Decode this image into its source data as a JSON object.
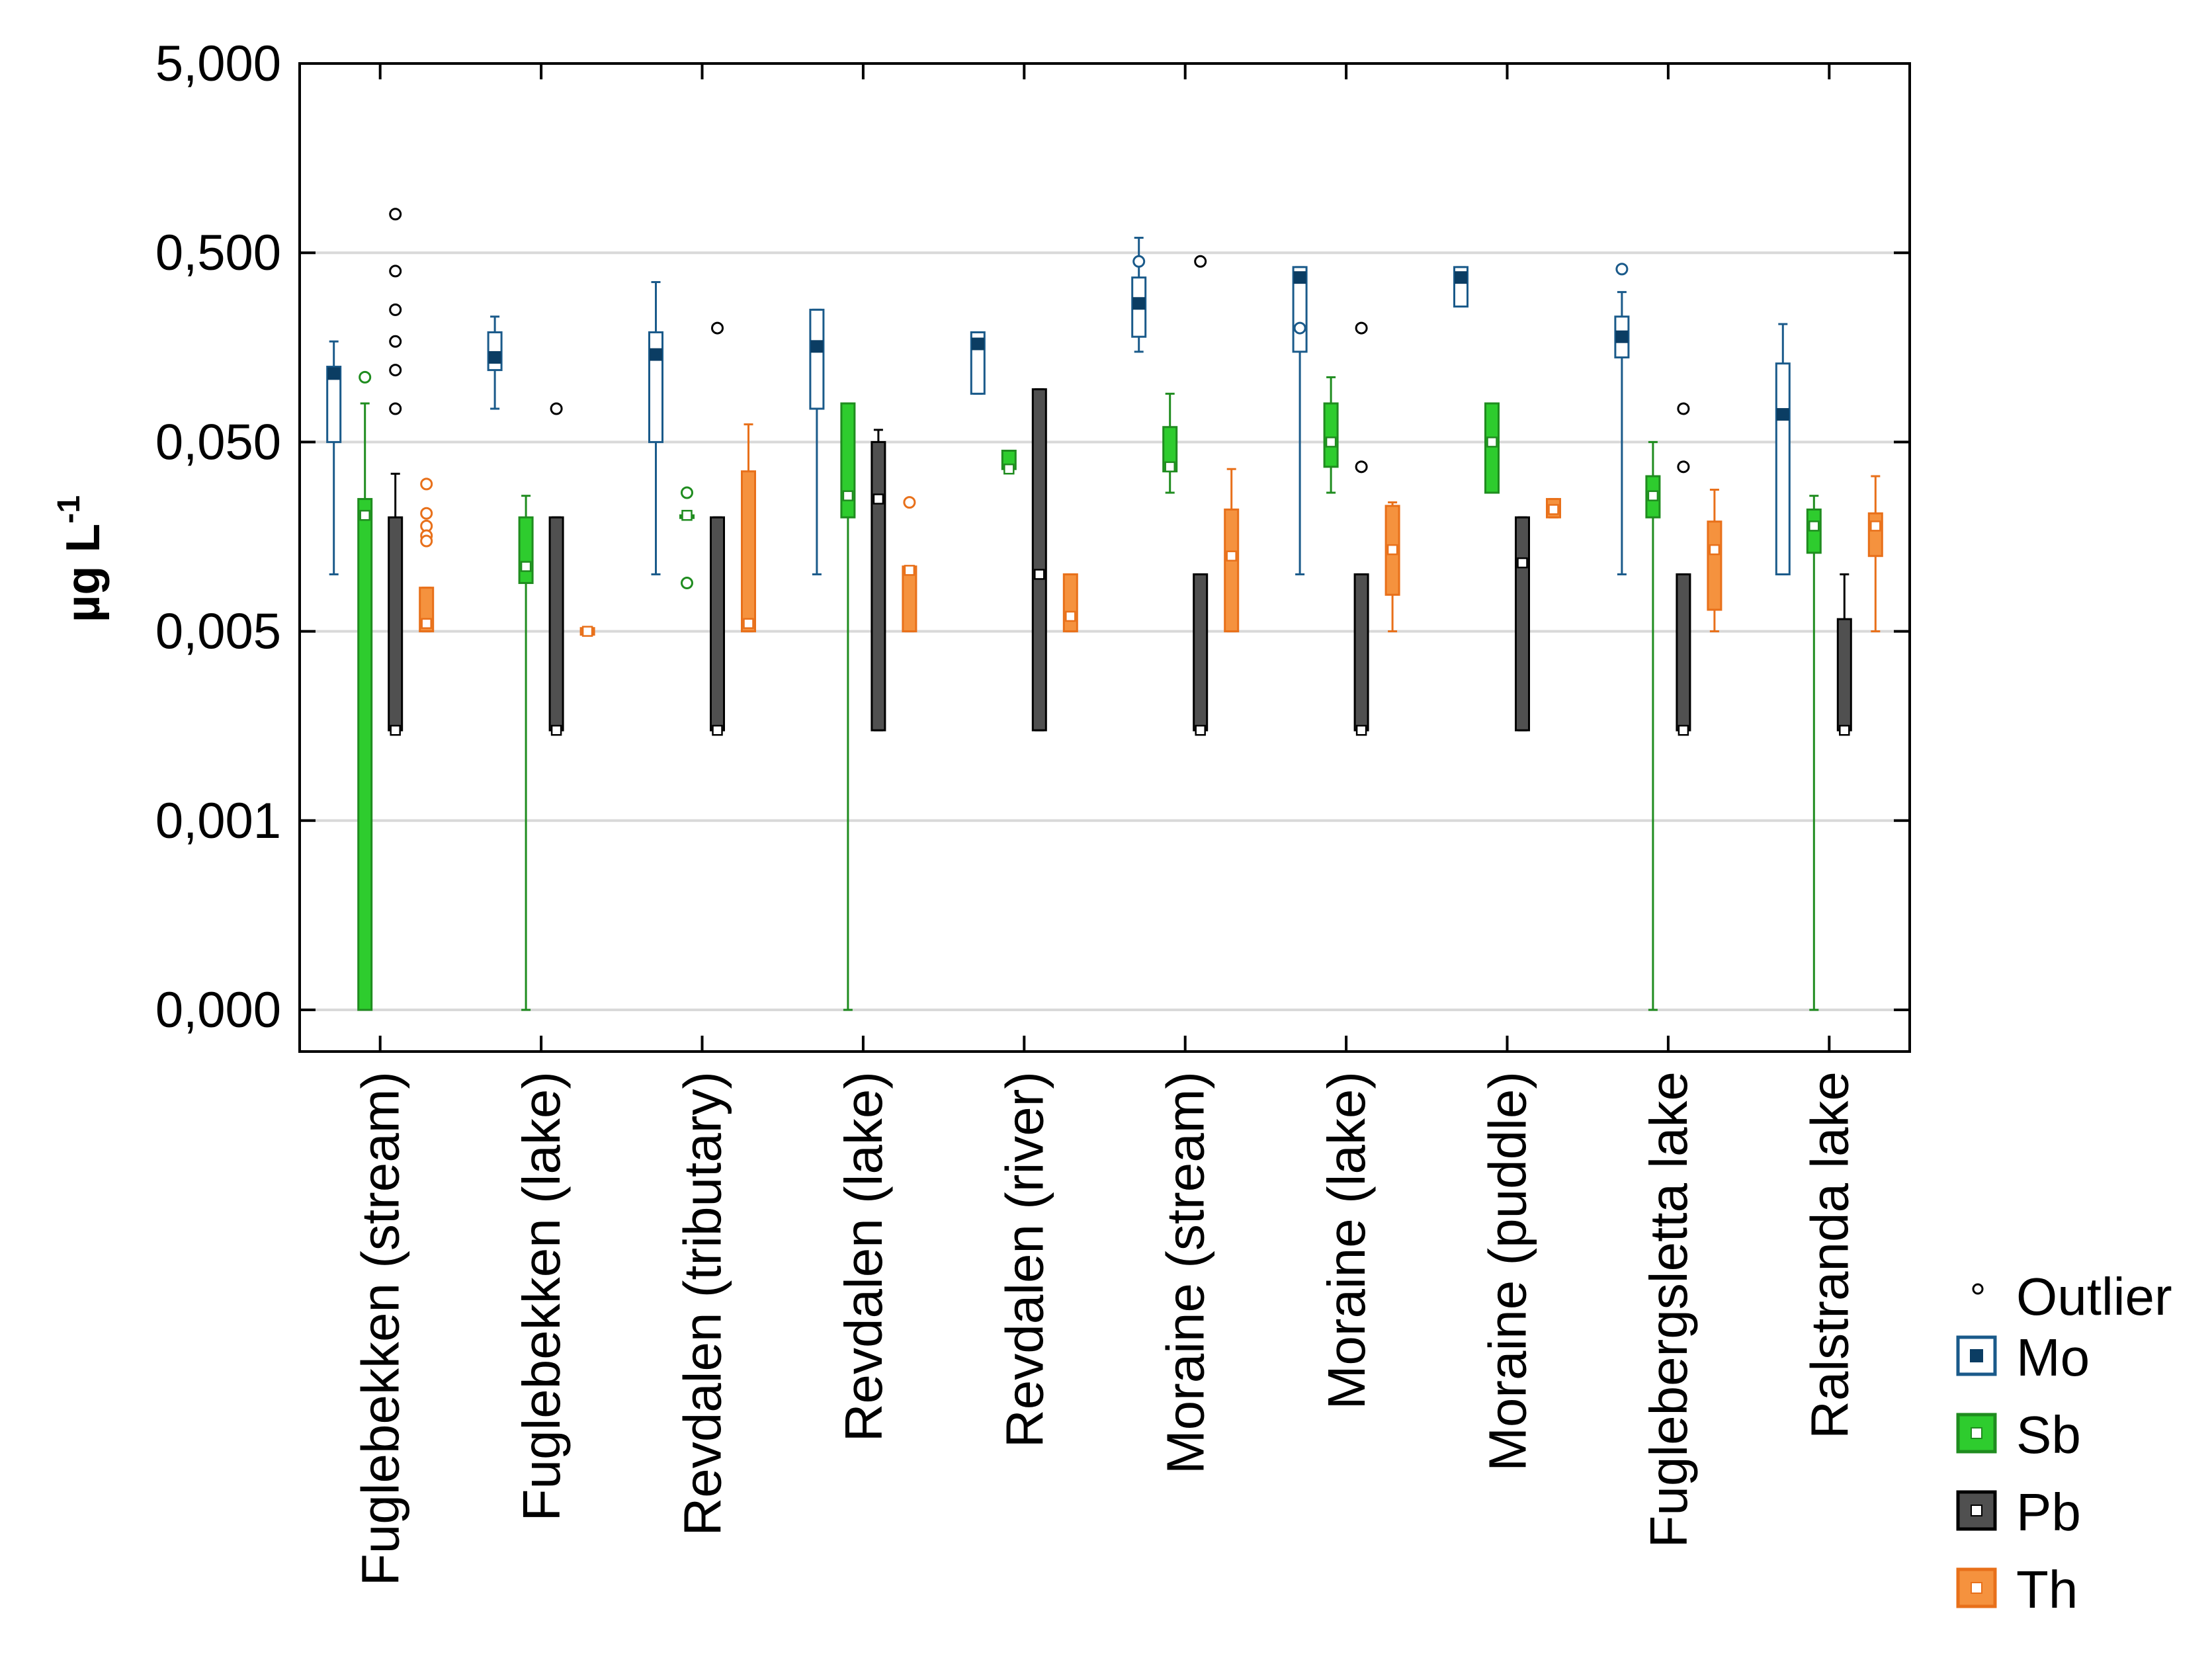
{
  "chart_data": {
    "type": "boxplot",
    "title": "",
    "ylabel": "µg L",
    "ylabel_superscript": "-1",
    "yscale": "log",
    "ylim": [
      5e-05,
      5
    ],
    "yticks": [
      {
        "value": 5,
        "label": "5,000"
      },
      {
        "value": 0.5,
        "label": "0,500"
      },
      {
        "value": 0.05,
        "label": "0,050"
      },
      {
        "value": 0.005,
        "label": "0,005"
      },
      {
        "value": 0.0005,
        "label": "0,001"
      },
      {
        "value": 5e-05,
        "label": "0,000"
      }
    ],
    "categories": [
      "Fuglebekken (stream)",
      "Fuglebekken (lake)",
      "Revdalen (tributary)",
      "Revdalen (lake)",
      "Revdalen (river)",
      "Moraine (stream)",
      "Moraine (lake)",
      "Moraine (puddle)",
      "Fuglebergsletta lake",
      "Ralstranda lake"
    ],
    "legend": {
      "outlier_label": "Outlier",
      "position": "bottom-right"
    },
    "series": [
      {
        "name": "Mo",
        "color": "#1a5a8a",
        "marker": "#0b3d63",
        "filled": false,
        "boxes": [
          {
            "median": 0.115,
            "q1": 0.05,
            "q3": 0.125,
            "wmin": 0.01,
            "wmax": 0.17,
            "outliers": []
          },
          {
            "median": 0.14,
            "q1": 0.12,
            "q3": 0.19,
            "wmin": 0.075,
            "wmax": 0.23,
            "outliers": []
          },
          {
            "median": 0.145,
            "q1": 0.05,
            "q3": 0.19,
            "wmin": 0.01,
            "wmax": 0.35,
            "outliers": []
          },
          {
            "median": 0.16,
            "q1": 0.075,
            "q3": 0.25,
            "wmin": 0.01,
            "wmax": 0.25,
            "outliers": []
          },
          {
            "median": 0.165,
            "q1": 0.09,
            "q3": 0.19,
            "wmin": 0.09,
            "wmax": 0.19,
            "outliers": []
          },
          {
            "median": 0.27,
            "q1": 0.18,
            "q3": 0.37,
            "wmin": 0.15,
            "wmax": 0.6,
            "outliers": [
              0.45
            ]
          },
          {
            "median": 0.37,
            "q1": 0.15,
            "q3": 0.42,
            "wmin": 0.01,
            "wmax": 0.42,
            "outliers": [
              0.2
            ]
          },
          {
            "median": 0.37,
            "q1": 0.26,
            "q3": 0.42,
            "wmin": 0.26,
            "wmax": 0.42,
            "outliers": []
          },
          {
            "median": 0.18,
            "q1": 0.14,
            "q3": 0.23,
            "wmin": 0.01,
            "wmax": 0.31,
            "outliers": [
              0.41
            ]
          },
          {
            "median": 0.07,
            "q1": 0.01,
            "q3": 0.13,
            "wmin": 0.01,
            "wmax": 0.21,
            "outliers": []
          }
        ]
      },
      {
        "name": "Sb",
        "color": "#1f8c1f",
        "marker": "#2ecc2e",
        "filled": true,
        "boxes": [
          {
            "median": 0.0205,
            "q1": 5e-05,
            "q3": 0.025,
            "wmin": 5e-05,
            "wmax": 0.08,
            "outliers": [
              0.11
            ]
          },
          {
            "median": 0.011,
            "q1": 0.009,
            "q3": 0.02,
            "wmin": 5e-05,
            "wmax": 0.026,
            "outliers": []
          },
          {
            "median": 0.0205,
            "q1": 0.0205,
            "q3": 0.0205,
            "wmin": 0.0205,
            "wmax": 0.0205,
            "outliers": [
              0.027,
              0.009
            ]
          },
          {
            "median": 0.026,
            "q1": 0.02,
            "q3": 0.08,
            "wmin": 5e-05,
            "wmax": 0.08,
            "outliers": []
          },
          {
            "median": 0.036,
            "q1": 0.036,
            "q3": 0.045,
            "wmin": 0.036,
            "wmax": 0.045,
            "outliers": []
          },
          {
            "median": 0.037,
            "q1": 0.035,
            "q3": 0.06,
            "wmin": 0.027,
            "wmax": 0.09,
            "outliers": []
          },
          {
            "median": 0.05,
            "q1": 0.037,
            "q3": 0.08,
            "wmin": 0.027,
            "wmax": 0.11,
            "outliers": []
          },
          {
            "median": 0.05,
            "q1": 0.027,
            "q3": 0.08,
            "wmin": 0.027,
            "wmax": 0.08,
            "outliers": []
          },
          {
            "median": 0.026,
            "q1": 0.02,
            "q3": 0.033,
            "wmin": 5e-05,
            "wmax": 0.05,
            "outliers": []
          },
          {
            "median": 0.018,
            "q1": 0.013,
            "q3": 0.022,
            "wmin": 5e-05,
            "wmax": 0.026,
            "outliers": []
          }
        ]
      },
      {
        "name": "Pb",
        "color": "#000000",
        "marker": "#505050",
        "filled": true,
        "boxes": [
          {
            "median": 0.0015,
            "q1": 0.0015,
            "q3": 0.02,
            "wmin": 0.0015,
            "wmax": 0.034,
            "outliers": [
              0.8,
              0.4,
              0.25,
              0.17,
              0.12,
              0.075
            ]
          },
          {
            "median": 0.0015,
            "q1": 0.0015,
            "q3": 0.02,
            "wmin": 0.0015,
            "wmax": 0.02,
            "outliers": [
              0.075
            ]
          },
          {
            "median": 0.0015,
            "q1": 0.0015,
            "q3": 0.02,
            "wmin": 0.0015,
            "wmax": 0.02,
            "outliers": [
              0.2
            ]
          },
          {
            "median": 0.025,
            "q1": 0.0015,
            "q3": 0.05,
            "wmin": 0.0015,
            "wmax": 0.058,
            "outliers": []
          },
          {
            "median": 0.01,
            "q1": 0.0015,
            "q3": 0.095,
            "wmin": 0.0015,
            "wmax": 0.095,
            "outliers": []
          },
          {
            "median": 0.0015,
            "q1": 0.0015,
            "q3": 0.01,
            "wmin": 0.0015,
            "wmax": 0.01,
            "outliers": [
              0.45
            ]
          },
          {
            "median": 0.0015,
            "q1": 0.0015,
            "q3": 0.01,
            "wmin": 0.0015,
            "wmax": 0.01,
            "outliers": [
              0.2,
              0.037
            ]
          },
          {
            "median": 0.0115,
            "q1": 0.0015,
            "q3": 0.02,
            "wmin": 0.0015,
            "wmax": 0.02,
            "outliers": []
          },
          {
            "median": 0.0015,
            "q1": 0.0015,
            "q3": 0.01,
            "wmin": 0.0015,
            "wmax": 0.01,
            "outliers": [
              0.075,
              0.037
            ]
          },
          {
            "median": 0.0015,
            "q1": 0.0015,
            "q3": 0.0058,
            "wmin": 0.0015,
            "wmax": 0.01,
            "outliers": []
          }
        ]
      },
      {
        "name": "Th",
        "color": "#e8701a",
        "marker": "#f5923e",
        "filled": true,
        "boxes": [
          {
            "median": 0.0055,
            "q1": 0.005,
            "q3": 0.0085,
            "wmin": 0.005,
            "wmax": 0.0085,
            "outliers": [
              0.03,
              0.021,
              0.018,
              0.016,
              0.015
            ]
          },
          {
            "median": 0.005,
            "q1": 0.0048,
            "q3": 0.0052,
            "wmin": 0.0048,
            "wmax": 0.0052,
            "outliers": []
          },
          {
            "median": 0.0055,
            "q1": 0.005,
            "q3": 0.035,
            "wmin": 0.005,
            "wmax": 0.062,
            "outliers": []
          },
          {
            "median": 0.0105,
            "q1": 0.005,
            "q3": 0.011,
            "wmin": 0.005,
            "wmax": 0.011,
            "outliers": [
              0.024
            ]
          },
          {
            "median": 0.006,
            "q1": 0.005,
            "q3": 0.01,
            "wmin": 0.005,
            "wmax": 0.01,
            "outliers": []
          },
          {
            "median": 0.0125,
            "q1": 0.005,
            "q3": 0.022,
            "wmin": 0.005,
            "wmax": 0.036,
            "outliers": []
          },
          {
            "median": 0.0135,
            "q1": 0.0078,
            "q3": 0.023,
            "wmin": 0.005,
            "wmax": 0.024,
            "outliers": []
          },
          {
            "median": 0.022,
            "q1": 0.02,
            "q3": 0.025,
            "wmin": 0.02,
            "wmax": 0.025,
            "outliers": []
          },
          {
            "median": 0.0135,
            "q1": 0.0065,
            "q3": 0.019,
            "wmin": 0.005,
            "wmax": 0.028,
            "outliers": []
          },
          {
            "median": 0.018,
            "q1": 0.0125,
            "q3": 0.021,
            "wmin": 0.005,
            "wmax": 0.033,
            "outliers": []
          }
        ]
      }
    ]
  }
}
